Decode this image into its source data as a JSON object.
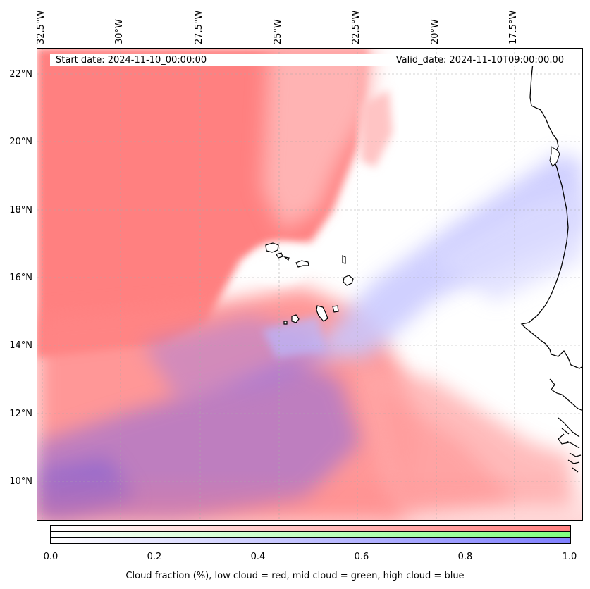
{
  "map": {
    "start_date": "Start date: 2024-11-10_00:00:00",
    "valid_date": "Valid_date: 2024-11-10T09:00:00.00",
    "lon_labels": [
      "32.5°W",
      "30°W",
      "27.5°W",
      "25°W",
      "22.5°W",
      "20°W",
      "17.5°W"
    ],
    "lat_labels": [
      "22°N",
      "20°N",
      "18°N",
      "16°N",
      "14°N",
      "12°N",
      "10°N"
    ],
    "extent": {
      "lon_west": "33°W",
      "lon_east": "16°W",
      "lat_south": "9°N",
      "lat_north": "23°N"
    },
    "layers": [
      "low cloud",
      "mid cloud",
      "high cloud"
    ],
    "colors": {
      "low": "#ff8080",
      "mid": "#80ff80",
      "high": "#8080ff",
      "coast": "#000000"
    }
  },
  "colorbar": {
    "ticks": [
      "0.0",
      "0.2",
      "0.4",
      "0.6",
      "0.8",
      "1.0"
    ],
    "label": "Cloud fraction (%), low cloud = red, mid cloud = green, high cloud = blue"
  }
}
